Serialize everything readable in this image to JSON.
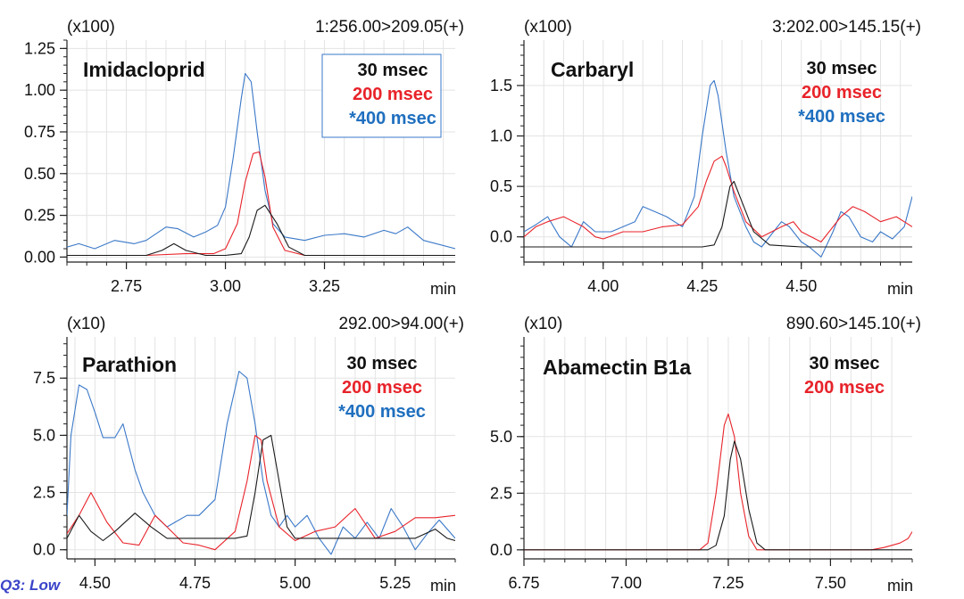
{
  "chart_data": [
    {
      "type": "line",
      "compound": "Imidacloprid",
      "transition": "1:256.00>209.05(+)",
      "multiplier": "(x100)",
      "xunit": "min",
      "xlim": [
        2.6,
        3.58
      ],
      "ylim": [
        -0.03,
        1.3
      ],
      "xticks": [
        2.75,
        3.0,
        3.25
      ],
      "xtick_labels": [
        "2.75",
        "3.00",
        "3.25"
      ],
      "yticks": [
        0.0,
        0.25,
        0.5,
        0.75,
        1.0,
        1.25
      ],
      "ytick_labels": [
        "0.00",
        "0.25",
        "0.50",
        "0.75",
        "1.00",
        "1.25"
      ],
      "legend": [
        "30 msec",
        "200 msec",
        "*400 msec"
      ],
      "legend_boxed": true,
      "series": [
        {
          "name": "30 msec",
          "color": "#1a1a1a",
          "x": [
            2.6,
            2.8,
            2.84,
            2.87,
            2.9,
            2.95,
            3.0,
            3.04,
            3.06,
            3.08,
            3.1,
            3.13,
            3.16,
            3.2,
            3.3,
            3.58
          ],
          "y": [
            0.01,
            0.01,
            0.04,
            0.08,
            0.04,
            0.01,
            0.01,
            0.02,
            0.12,
            0.28,
            0.31,
            0.2,
            0.06,
            0.01,
            0.01,
            0.01
          ]
        },
        {
          "name": "200 msec",
          "color": "#e8232a",
          "x": [
            2.6,
            2.8,
            2.9,
            2.97,
            3.0,
            3.03,
            3.05,
            3.07,
            3.085,
            3.1,
            3.12,
            3.15,
            3.2,
            3.58
          ],
          "y": [
            0.01,
            0.01,
            0.02,
            0.02,
            0.05,
            0.2,
            0.45,
            0.62,
            0.63,
            0.48,
            0.18,
            0.04,
            0.01,
            0.01
          ]
        },
        {
          "name": "*400 msec",
          "color": "#3a78c8",
          "x": [
            2.6,
            2.63,
            2.67,
            2.72,
            2.77,
            2.8,
            2.85,
            2.88,
            2.92,
            2.95,
            2.98,
            3.0,
            3.02,
            3.04,
            3.05,
            3.065,
            3.08,
            3.1,
            3.12,
            3.15,
            3.2,
            3.25,
            3.3,
            3.35,
            3.4,
            3.43,
            3.46,
            3.5,
            3.58
          ],
          "y": [
            0.06,
            0.08,
            0.05,
            0.1,
            0.08,
            0.1,
            0.18,
            0.17,
            0.12,
            0.15,
            0.19,
            0.3,
            0.6,
            0.95,
            1.1,
            1.05,
            0.75,
            0.4,
            0.2,
            0.12,
            0.1,
            0.13,
            0.14,
            0.12,
            0.16,
            0.14,
            0.18,
            0.1,
            0.05
          ]
        }
      ]
    },
    {
      "type": "line",
      "compound": "Carbaryl",
      "transition": "3:202.00>145.15(+)",
      "multiplier": "(x100)",
      "xunit": "min",
      "xlim": [
        3.8,
        4.78
      ],
      "ylim": [
        -0.25,
        1.95
      ],
      "xticks": [
        4.0,
        4.25,
        4.5
      ],
      "xtick_labels": [
        "4.00",
        "4.25",
        "4.50"
      ],
      "yticks": [
        0.0,
        0.5,
        1.0,
        1.5
      ],
      "ytick_labels": [
        "0.0",
        "0.5",
        "1.0",
        "1.5"
      ],
      "legend": [
        "30 msec",
        "200 msec",
        "*400 msec"
      ],
      "legend_boxed": false,
      "series": [
        {
          "name": "30 msec",
          "color": "#1a1a1a",
          "x": [
            3.8,
            4.25,
            4.28,
            4.3,
            4.32,
            4.33,
            4.35,
            4.38,
            4.42,
            4.5,
            4.6,
            4.78
          ],
          "y": [
            -0.1,
            -0.1,
            -0.08,
            0.1,
            0.5,
            0.55,
            0.35,
            0.05,
            -0.08,
            -0.1,
            -0.1,
            -0.1
          ]
        },
        {
          "name": "200 msec",
          "color": "#e8232a",
          "x": [
            3.8,
            3.83,
            3.86,
            3.9,
            3.95,
            3.98,
            4.0,
            4.05,
            4.1,
            4.15,
            4.2,
            4.24,
            4.26,
            4.28,
            4.3,
            4.31,
            4.33,
            4.36,
            4.4,
            4.45,
            4.48,
            4.5,
            4.55,
            4.6,
            4.63,
            4.66,
            4.7,
            4.74,
            4.78
          ],
          "y": [
            0.0,
            0.1,
            0.15,
            0.2,
            0.1,
            0.0,
            -0.02,
            0.05,
            0.05,
            0.1,
            0.12,
            0.3,
            0.55,
            0.75,
            0.8,
            0.7,
            0.45,
            0.15,
            0.0,
            0.1,
            0.15,
            0.05,
            -0.05,
            0.2,
            0.3,
            0.25,
            0.15,
            0.2,
            0.1
          ]
        },
        {
          "name": "*400 msec",
          "color": "#3a78c8",
          "x": [
            3.8,
            3.83,
            3.86,
            3.89,
            3.92,
            3.95,
            3.98,
            4.02,
            4.05,
            4.08,
            4.1,
            4.13,
            4.16,
            4.2,
            4.23,
            4.25,
            4.27,
            4.28,
            4.29,
            4.31,
            4.33,
            4.36,
            4.38,
            4.4,
            4.43,
            4.45,
            4.47,
            4.5,
            4.52,
            4.55,
            4.58,
            4.6,
            4.62,
            4.65,
            4.68,
            4.7,
            4.73,
            4.76,
            4.78
          ],
          "y": [
            0.05,
            0.12,
            0.2,
            0.0,
            -0.1,
            0.15,
            0.05,
            0.05,
            0.1,
            0.15,
            0.3,
            0.25,
            0.2,
            0.1,
            0.4,
            1.0,
            1.5,
            1.55,
            1.4,
            0.85,
            0.4,
            0.1,
            -0.05,
            -0.1,
            0.05,
            0.15,
            0.1,
            -0.05,
            -0.1,
            -0.2,
            0.05,
            0.25,
            0.2,
            0.0,
            -0.05,
            0.05,
            -0.02,
            0.1,
            0.4
          ]
        }
      ]
    },
    {
      "type": "line",
      "compound": "Parathion",
      "transition": "292.00>94.00(+)",
      "multiplier": "(x10)",
      "xunit": "min",
      "xlim": [
        4.43,
        5.4
      ],
      "ylim": [
        -0.4,
        9.3
      ],
      "xticks": [
        4.5,
        4.75,
        5.0,
        5.25
      ],
      "xtick_labels": [
        "4.50",
        "4.75",
        "5.00",
        "5.25"
      ],
      "yticks": [
        0.0,
        2.5,
        5.0,
        7.5
      ],
      "ytick_labels": [
        "0.0",
        "2.5",
        "5.0",
        "7.5"
      ],
      "legend": [
        "30 msec",
        "200 msec",
        "*400 msec"
      ],
      "legend_boxed": false,
      "series": [
        {
          "name": "30 msec",
          "color": "#1a1a1a",
          "x": [
            4.43,
            4.46,
            4.49,
            4.52,
            4.55,
            4.6,
            4.64,
            4.68,
            4.75,
            4.85,
            4.88,
            4.9,
            4.92,
            4.94,
            4.96,
            4.98,
            5.0,
            5.05,
            5.15,
            5.25,
            5.3,
            5.35,
            5.38,
            5.4
          ],
          "y": [
            0.5,
            1.5,
            0.8,
            0.4,
            0.8,
            1.6,
            1.0,
            0.5,
            0.5,
            0.5,
            0.6,
            2.5,
            4.8,
            5.0,
            3.0,
            1.0,
            0.5,
            0.5,
            0.5,
            0.5,
            0.5,
            0.9,
            0.5,
            0.4
          ]
        },
        {
          "name": "200 msec",
          "color": "#e8232a",
          "x": [
            4.43,
            4.46,
            4.49,
            4.53,
            4.57,
            4.61,
            4.65,
            4.68,
            4.72,
            4.76,
            4.8,
            4.85,
            4.88,
            4.9,
            4.915,
            4.93,
            4.96,
            5.0,
            5.05,
            5.1,
            5.15,
            5.2,
            5.25,
            5.3,
            5.35,
            5.4
          ],
          "y": [
            0.7,
            1.5,
            2.5,
            1.2,
            0.3,
            0.2,
            1.5,
            1.0,
            0.3,
            0.2,
            0.0,
            0.8,
            3.0,
            5.0,
            4.8,
            3.0,
            1.0,
            0.4,
            0.8,
            1.0,
            1.8,
            0.5,
            0.8,
            1.4,
            1.4,
            1.5
          ]
        },
        {
          "name": "*400 msec",
          "color": "#3a78c8",
          "x": [
            4.43,
            4.44,
            4.46,
            4.48,
            4.5,
            4.52,
            4.55,
            4.57,
            4.6,
            4.62,
            4.65,
            4.68,
            4.7,
            4.73,
            4.76,
            4.8,
            4.83,
            4.86,
            4.88,
            4.9,
            4.92,
            4.94,
            4.96,
            4.98,
            5.0,
            5.03,
            5.06,
            5.09,
            5.12,
            5.15,
            5.18,
            5.21,
            5.24,
            5.27,
            5.3,
            5.33,
            5.36,
            5.4
          ],
          "y": [
            1.5,
            5.0,
            7.2,
            7.0,
            6.0,
            4.9,
            4.9,
            5.5,
            3.5,
            2.5,
            1.5,
            1.0,
            1.2,
            1.5,
            1.5,
            2.2,
            5.5,
            7.8,
            7.5,
            5.5,
            3.0,
            1.5,
            1.0,
            1.5,
            1.0,
            1.5,
            0.5,
            -0.2,
            1.0,
            0.5,
            1.2,
            0.5,
            1.8,
            1.0,
            0.0,
            0.7,
            1.3,
            0.5
          ]
        }
      ]
    },
    {
      "type": "line",
      "compound": "Abamectin B1a",
      "transition": "890.60>145.10(+)",
      "multiplier": "(x10)",
      "xunit": "min",
      "xlim": [
        6.75,
        7.7
      ],
      "ylim": [
        -0.4,
        9.4
      ],
      "xticks": [
        6.75,
        7.0,
        7.25,
        7.5
      ],
      "xtick_labels": [
        "6.75",
        "7.00",
        "7.25",
        "7.50"
      ],
      "yticks": [
        0.0,
        2.5,
        5.0
      ],
      "ytick_labels": [
        "0.0",
        "2.5",
        "5.0"
      ],
      "legend": [
        "30 msec",
        "200 msec"
      ],
      "legend_boxed": false,
      "series": [
        {
          "name": "30 msec",
          "color": "#1a1a1a",
          "x": [
            6.75,
            7.2,
            7.22,
            7.24,
            7.255,
            7.265,
            7.28,
            7.3,
            7.32,
            7.34,
            7.7
          ],
          "y": [
            0.0,
            0.0,
            0.2,
            1.5,
            4.0,
            4.8,
            4.0,
            1.8,
            0.3,
            0.0,
            0.0
          ]
        },
        {
          "name": "200 msec",
          "color": "#e8232a",
          "x": [
            6.75,
            7.18,
            7.2,
            7.22,
            7.24,
            7.25,
            7.265,
            7.28,
            7.3,
            7.32,
            7.6,
            7.63,
            7.65,
            7.67,
            7.69,
            7.7
          ],
          "y": [
            0.0,
            0.0,
            0.3,
            2.5,
            5.5,
            6.0,
            5.0,
            2.5,
            0.6,
            0.0,
            0.0,
            0.1,
            0.2,
            0.3,
            0.5,
            0.8
          ]
        }
      ]
    }
  ],
  "footnote": "Q3: Low"
}
